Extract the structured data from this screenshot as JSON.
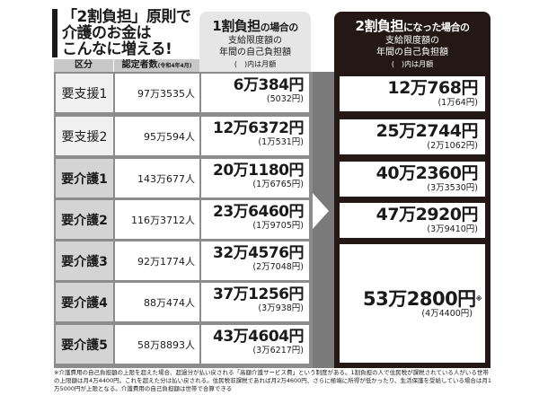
{
  "title": {
    "lines": [
      "「2割負担」原則で",
      "介護のお金は",
      "こんなに増える!"
    ]
  },
  "header_1wari": {
    "main": "1割負担",
    "suffix": "の場合の",
    "sub1": "支給限度額の",
    "sub2": "年間の自己負担額",
    "sub3": "(　)内は月額"
  },
  "header_2wari": {
    "main": "2割負担",
    "suffix": "になった場合の",
    "sub1": "支給限度額の",
    "sub2": "年間の自己負担額",
    "sub3": "(　)内は月額"
  },
  "columns": {
    "category": "区分",
    "count": "認定者数",
    "count_note": "(令和4年4月)"
  },
  "rows": [
    {
      "category": "要支援1",
      "count": "97万3535人",
      "yearly_1": "6万384円",
      "monthly_1": "(5032円)",
      "yearly_2": "12万768円",
      "monthly_2": "(1万64円)"
    },
    {
      "category": "要支援2",
      "count": "95万594人",
      "yearly_1": "12万6372円",
      "monthly_1": "(1万531円)",
      "yearly_2": "25万2744円",
      "monthly_2": "(2万1062円)"
    },
    {
      "category": "要介護1",
      "count": "143万677人",
      "yearly_1": "20万1180円",
      "monthly_1": "(1万6765円)",
      "yearly_2": "40万2360円",
      "monthly_2": "(3万3530円)"
    },
    {
      "category": "要介護2",
      "count": "116万3712人",
      "yearly_1": "23万6460円",
      "monthly_1": "(1万9705円)",
      "yearly_2": "47万2920円",
      "monthly_2": "(3万9410円)"
    },
    {
      "category": "要介護3",
      "count": "92万1774人",
      "yearly_1": "32万4576円",
      "monthly_1": "(2万7048円)"
    },
    {
      "category": "要介護4",
      "count": "88万474人",
      "yearly_1": "37万1256円",
      "monthly_1": "(3万938円)"
    },
    {
      "category": "要介護5",
      "count": "58万8893人",
      "yearly_1": "43万4604円",
      "monthly_1": "(3万6217円)"
    }
  ],
  "merged_2wari": {
    "yearly": "53万2800円",
    "mark": "※",
    "monthly": "(4万4400円)"
  },
  "footer": "※介護費用の自己負担額の上限を超えた場合、超過分が払い戻される「高額介護サービス費」という制度がある。1割負担の人で住民税が課税されている人がいる世帯の上限額は月4万4400円。これを超えた分は払い戻される。住民税非課税であれば月2万4600円、さらに極端に所得が低かったり、生活保護を受給している場合は月1万5000円が上限となる。介護費用の自己負担額は世帯で合算できる",
  "colors": {
    "dark": "#231815",
    "gray_frame": "#8c8c8c",
    "header_light": "#e6e6e6"
  }
}
